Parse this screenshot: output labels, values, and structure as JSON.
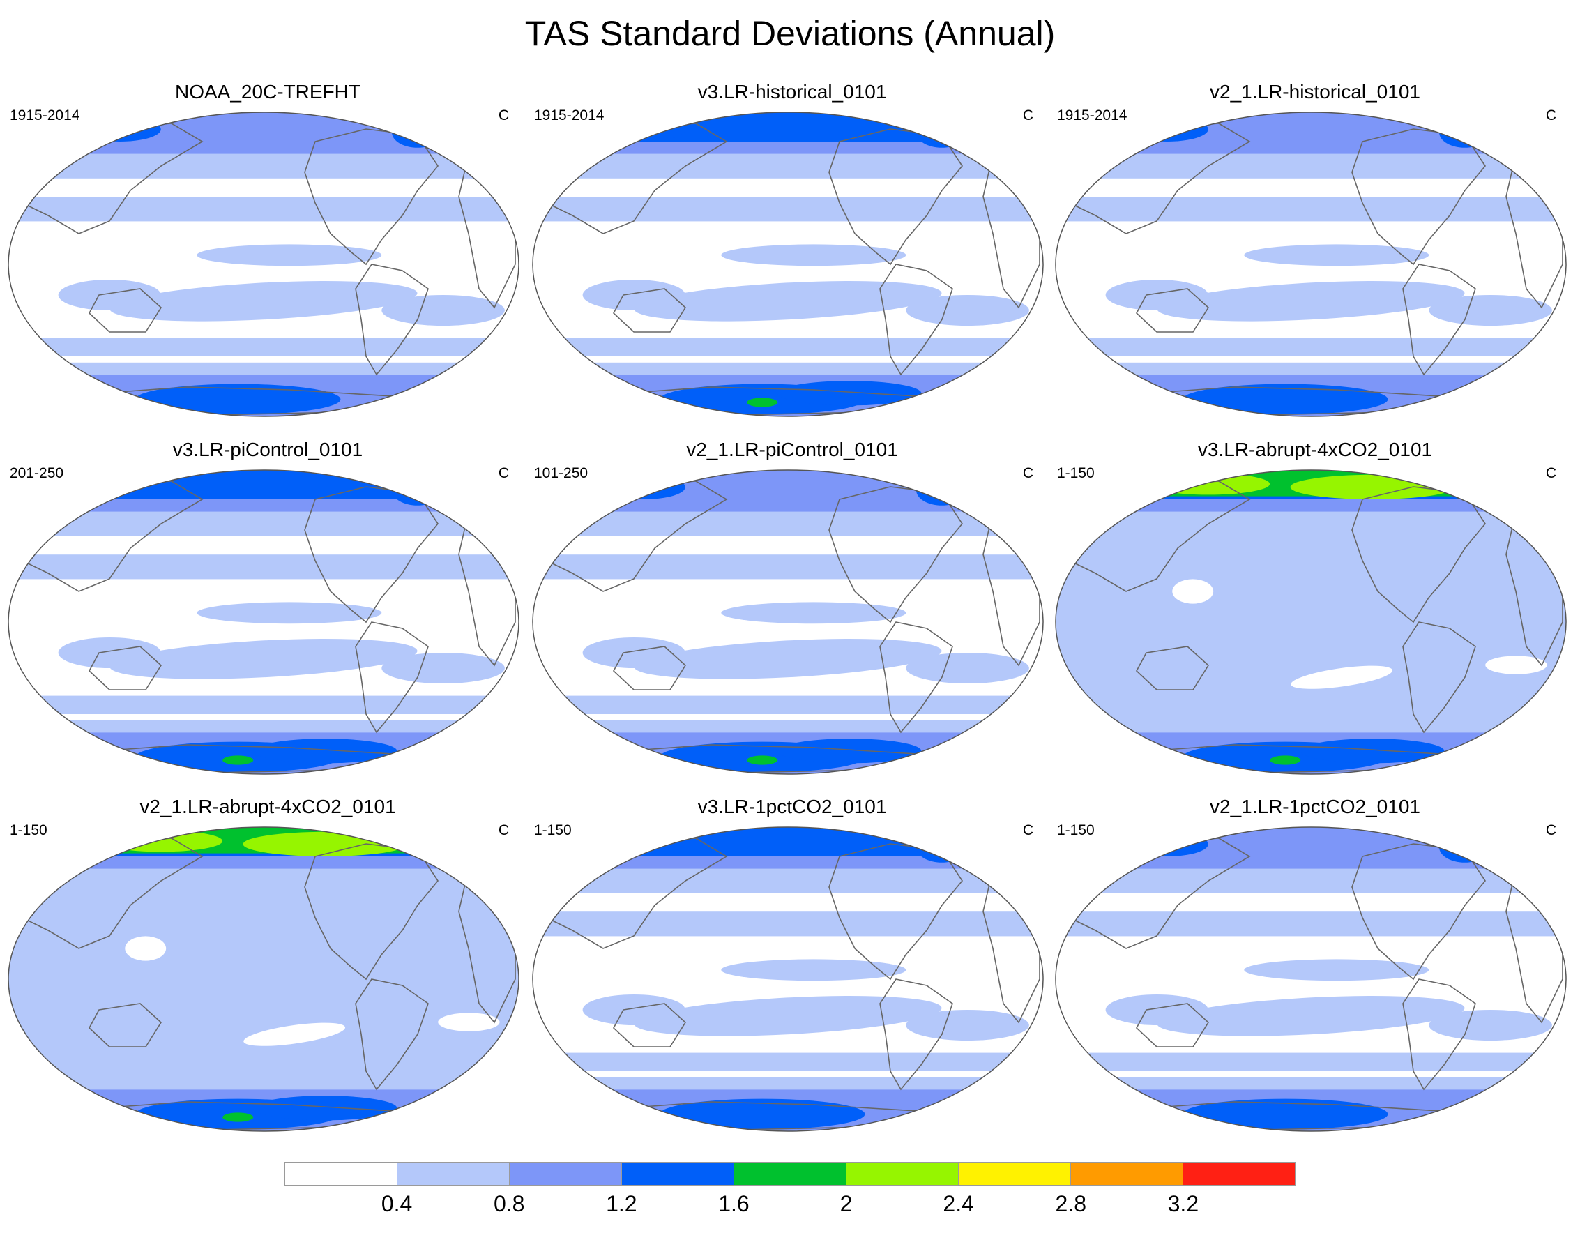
{
  "title": "TAS Standard Deviations (Annual)",
  "panels": [
    {
      "title": "NOAA_20C-TREFHT",
      "period": "1915-2014",
      "units": "C",
      "warm_north": 1,
      "south_blue": 1
    },
    {
      "title": "v3.LR-historical_0101",
      "period": "1915-2014",
      "units": "C",
      "warm_north": 2,
      "south_blue": 2
    },
    {
      "title": "v2_1.LR-historical_0101",
      "period": "1915-2014",
      "units": "C",
      "warm_north": 1,
      "south_blue": 1
    },
    {
      "title": "v3.LR-piControl_0101",
      "period": "201-250",
      "units": "C",
      "warm_north": 2,
      "south_blue": 2
    },
    {
      "title": "v2_1.LR-piControl_0101",
      "period": "101-250",
      "units": "C",
      "warm_north": 1,
      "south_blue": 2
    },
    {
      "title": "v3.LR-abrupt-4xCO2_0101",
      "period": "1-150",
      "units": "C",
      "warm_north": 3,
      "south_blue": 2
    },
    {
      "title": "v2_1.LR-abrupt-4xCO2_0101",
      "period": "1-150",
      "units": "C",
      "warm_north": 3,
      "south_blue": 2
    },
    {
      "title": "v3.LR-1pctCO2_0101",
      "period": "1-150",
      "units": "C",
      "warm_north": 2,
      "south_blue": 1
    },
    {
      "title": "v2_1.LR-1pctCO2_0101",
      "period": "1-150",
      "units": "C",
      "warm_north": 1,
      "south_blue": 1
    }
  ],
  "colorbar": {
    "colors": [
      "#ffffff",
      "#b4c8fa",
      "#7d96f8",
      "#005ff9",
      "#00c12e",
      "#96f500",
      "#fff200",
      "#ff9b00",
      "#ff2014"
    ],
    "ticks": [
      "0.4",
      "0.8",
      "1.2",
      "1.6",
      "2",
      "2.4",
      "2.8",
      "3.2"
    ]
  }
}
